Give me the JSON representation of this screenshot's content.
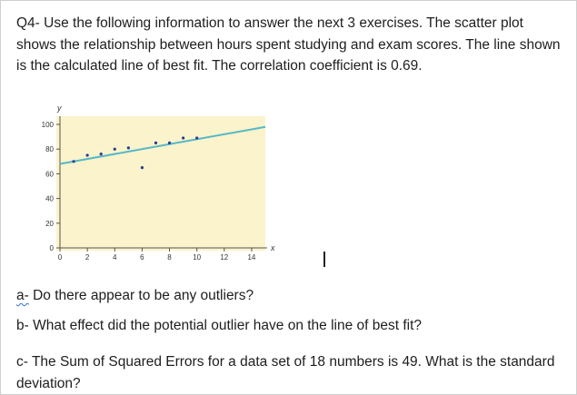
{
  "intro": "Q4- Use the following information to answer the next 3 exercises. The scatter plot shows the relationship between hours spent studying and exam scores. The line shown is the calculated line of best fit. The correlation coefficient is 0.69.",
  "questions": {
    "a_prefix": "a-",
    "a_text": " Do there appear to be any outliers?",
    "b": "b- What effect did the potential outlier have on the line of best fit?",
    "c": "c- The Sum of Squared Errors for a data set of 18 numbers is 49. What is the standard deviation?"
  },
  "chart_data": {
    "type": "scatter",
    "xlabel": "x",
    "ylabel": "y",
    "xlim": [
      0,
      15
    ],
    "ylim": [
      0,
      100
    ],
    "x_ticks": [
      0,
      2,
      4,
      6,
      8,
      10,
      12,
      14
    ],
    "y_ticks": [
      0,
      20,
      40,
      60,
      80,
      100
    ],
    "points": [
      {
        "x": 1,
        "y": 70
      },
      {
        "x": 2,
        "y": 75
      },
      {
        "x": 3,
        "y": 76
      },
      {
        "x": 4,
        "y": 80
      },
      {
        "x": 5,
        "y": 81
      },
      {
        "x": 6,
        "y": 65
      },
      {
        "x": 7,
        "y": 85
      },
      {
        "x": 8,
        "y": 85
      },
      {
        "x": 9,
        "y": 89
      },
      {
        "x": 10,
        "y": 89
      }
    ],
    "best_fit_line": {
      "x": [
        0,
        15
      ],
      "y": [
        68,
        98
      ]
    },
    "colors": {
      "background": "#fbf3cb",
      "line": "#54b8c9",
      "points": "#2b3a8c"
    }
  }
}
